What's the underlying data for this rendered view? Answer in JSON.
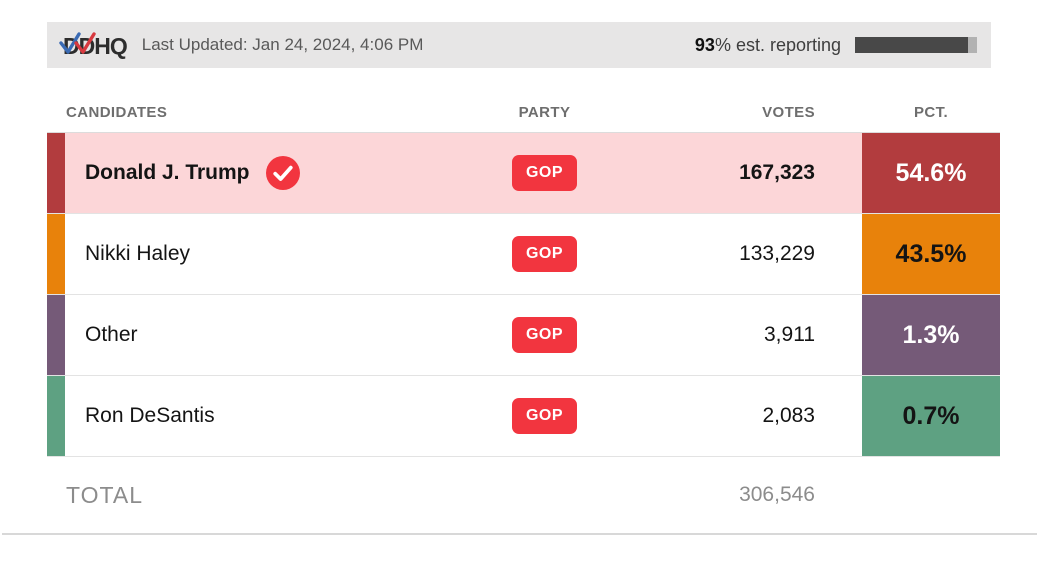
{
  "header": {
    "logo_text": "DDHQ",
    "last_updated": "Last Updated: Jan 24, 2024, 4:06 PM",
    "reporting": {
      "value": "93",
      "suffix": "% est. reporting"
    }
  },
  "table": {
    "columns": {
      "candidates": "CANDIDATES",
      "party": "PARTY",
      "votes": "VOTES",
      "pct": "PCT."
    },
    "rows": [
      {
        "name": "Donald J. Trump",
        "winner": true,
        "party": "GOP",
        "votes": "167,323",
        "pct": "54.6%",
        "color": "#b23c3e",
        "pct_text_color": "#ffffff",
        "row_bg": "#fcd6d8"
      },
      {
        "name": "Nikki Haley",
        "winner": false,
        "party": "GOP",
        "votes": "133,229",
        "pct": "43.5%",
        "color": "#e8820b",
        "pct_text_color": "#141414",
        "row_bg": "#ffffff"
      },
      {
        "name": "Other",
        "winner": false,
        "party": "GOP",
        "votes": "3,911",
        "pct": "1.3%",
        "color": "#755a78",
        "pct_text_color": "#ffffff",
        "row_bg": "#ffffff"
      },
      {
        "name": "Ron DeSantis",
        "winner": false,
        "party": "GOP",
        "votes": "2,083",
        "pct": "0.7%",
        "color": "#5ea182",
        "pct_text_color": "#141414",
        "row_bg": "#ffffff"
      }
    ],
    "total": {
      "label": "TOTAL",
      "votes": "306,546"
    }
  },
  "colors": {
    "badge_red": "#f2353f",
    "status_bar_bg": "#e7e6e6",
    "progress_fill": "#484848",
    "progress_track": "#b2b2b2",
    "logo_check_blue": "#3a6ab3",
    "logo_check_red": "#d83a40"
  },
  "chart_data": {
    "type": "table",
    "title": "DDHQ election results, 93% est. reporting, last updated Jan 24, 2024, 4:06 PM",
    "columns": [
      "CANDIDATES",
      "PARTY",
      "VOTES",
      "PCT."
    ],
    "rows": [
      {
        "candidate": "Donald J. Trump",
        "party": "GOP",
        "votes": 167323,
        "pct": 54.6,
        "winner": true
      },
      {
        "candidate": "Nikki Haley",
        "party": "GOP",
        "votes": 133229,
        "pct": 43.5,
        "winner": false
      },
      {
        "candidate": "Other",
        "party": "GOP",
        "votes": 3911,
        "pct": 1.3,
        "winner": false
      },
      {
        "candidate": "Ron DeSantis",
        "party": "GOP",
        "votes": 2083,
        "pct": 0.7,
        "winner": false
      }
    ],
    "total_votes": 306546,
    "est_reporting_pct": 93
  }
}
